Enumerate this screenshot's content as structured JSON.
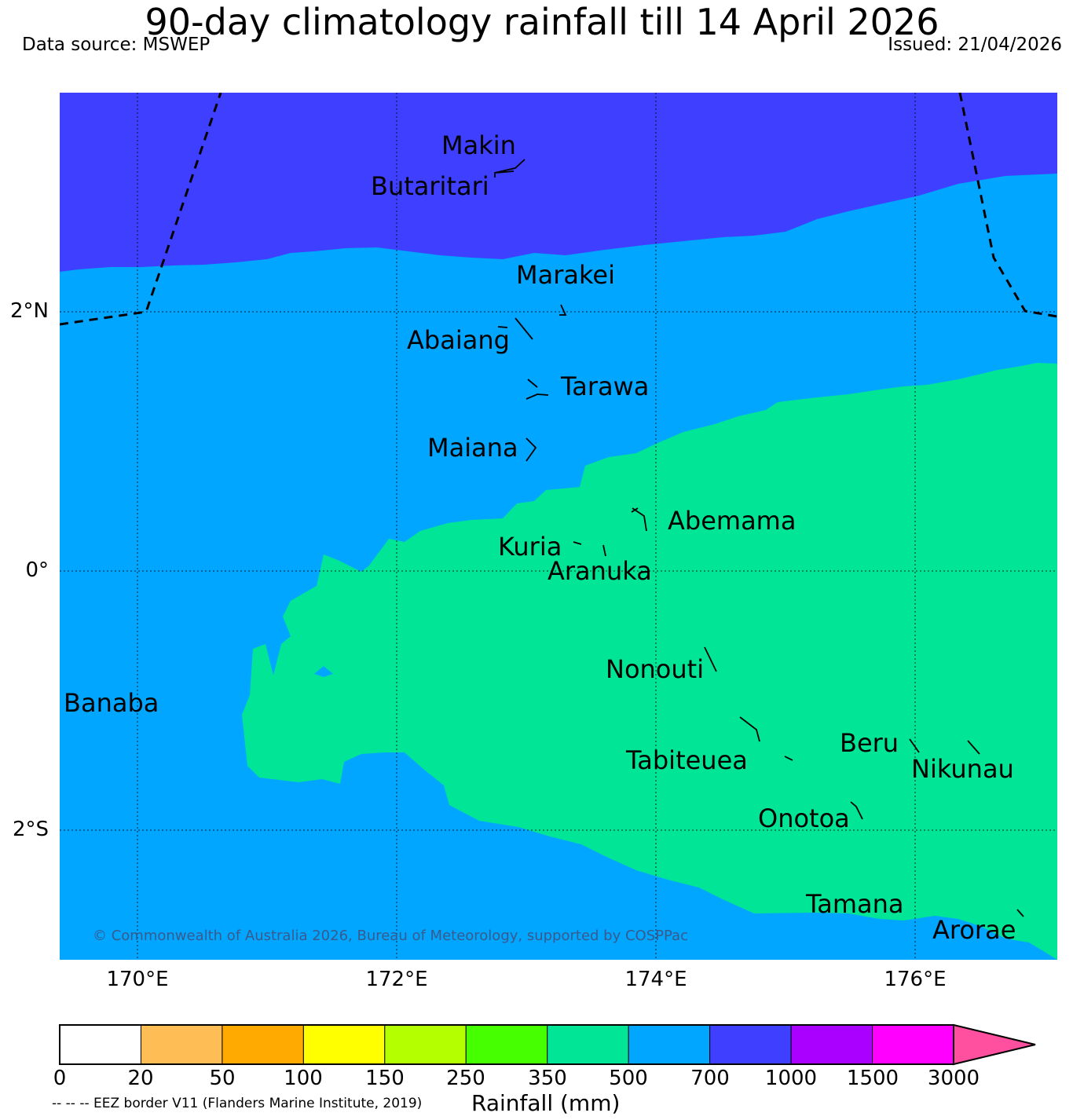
{
  "header": {
    "title": "90-day climatology rainfall till 14 April 2026",
    "data_source": "Data source: MSWEP",
    "issued": "Issued: 21/04/2026"
  },
  "map": {
    "latitude_labels": [
      "2°N",
      "0°",
      "2°S"
    ],
    "longitude_labels": [
      "170°E",
      "172°E",
      "174°E",
      "176°E"
    ],
    "islands": [
      {
        "id": "makin",
        "label": "Makin"
      },
      {
        "id": "butaritari",
        "label": "Butaritari"
      },
      {
        "id": "marakei",
        "label": "Marakei"
      },
      {
        "id": "abaiang",
        "label": "Abaiang"
      },
      {
        "id": "tarawa",
        "label": "Tarawa"
      },
      {
        "id": "maiana",
        "label": "Maiana"
      },
      {
        "id": "abemama",
        "label": "Abemama"
      },
      {
        "id": "kuria",
        "label": "Kuria"
      },
      {
        "id": "aranuka",
        "label": "Aranuka"
      },
      {
        "id": "nonouti",
        "label": "Nonouti"
      },
      {
        "id": "banaba",
        "label": "Banaba"
      },
      {
        "id": "tabiteuea",
        "label": "Tabiteuea"
      },
      {
        "id": "beru",
        "label": "Beru"
      },
      {
        "id": "nikunau",
        "label": "Nikunau"
      },
      {
        "id": "onotoa",
        "label": "Onotoa"
      },
      {
        "id": "tamana",
        "label": "Tamana"
      },
      {
        "id": "arorae",
        "label": "Arorae"
      }
    ],
    "copyright": "© Commonwealth of Australia 2026, Bureau of Meteorology, supported by COSPPac",
    "region_colors": {
      "rain_700_1000": "#3f3fff",
      "rain_500_700": "#00a6ff",
      "rain_350_500": "#00e696"
    }
  },
  "colorbar": {
    "label": "Rainfall (mm)",
    "ticks": [
      "0",
      "20",
      "50",
      "100",
      "150",
      "250",
      "350",
      "500",
      "700",
      "1000",
      "1500",
      "3000"
    ],
    "colors": [
      "#ffffff",
      "#ffbe55",
      "#ffaa00",
      "#ffff00",
      "#b4ff00",
      "#46ff00",
      "#00e696",
      "#00a6ff",
      "#3f3fff",
      "#aa00ff",
      "#ff00ff"
    ],
    "extend_color": "#ff50a0"
  },
  "footer": {
    "eez_note": "-- -- -- EEZ border V11 (Flanders Marine Institute, 2019)"
  }
}
